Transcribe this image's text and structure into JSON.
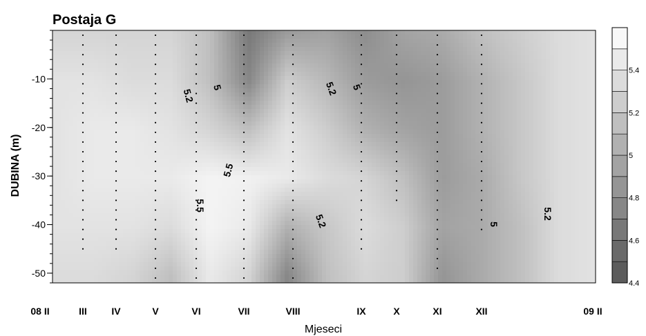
{
  "chart_data": {
    "type": "heatmap",
    "title": "Postaja G",
    "xlabel": "Mjeseci",
    "ylabel": "DUBINA (m)",
    "x_ticks": [
      "08 II",
      "III",
      "IV",
      "V",
      "VI",
      "VII",
      "VIII",
      "IX",
      "X",
      "XI",
      "XII",
      "09 II"
    ],
    "y_ticks": [
      -10,
      -20,
      -30,
      -40,
      -50
    ],
    "ylim": [
      -52,
      0
    ],
    "colorbar": {
      "ticks": [
        5.4,
        5.2,
        5,
        4.8,
        4.6,
        4.4
      ],
      "range": [
        4.4,
        5.6
      ],
      "low_color": "#555555",
      "high_color": "#ffffff"
    },
    "contour_labels": [
      "5.2",
      "5",
      "5.5",
      "5.5",
      "5.2",
      "5",
      "5.2",
      "5",
      "5.2"
    ],
    "depths": [
      0,
      -10,
      -20,
      -30,
      -40,
      -50
    ],
    "grid": [
      [
        5.3,
        5.3,
        5.3,
        5.3,
        5.15,
        4.65,
        4.9,
        4.95,
        4.8,
        4.95,
        5.0,
        5.15,
        5.25,
        5.35,
        5.4
      ],
      [
        5.4,
        5.4,
        5.35,
        5.35,
        5.15,
        4.75,
        5.25,
        5.1,
        4.9,
        4.85,
        4.9,
        5.05,
        5.2,
        5.35,
        5.4
      ],
      [
        5.4,
        5.45,
        5.45,
        5.4,
        5.3,
        5.15,
        5.4,
        5.25,
        5.05,
        4.95,
        4.9,
        5.05,
        5.2,
        5.35,
        5.4
      ],
      [
        5.4,
        5.45,
        5.45,
        5.45,
        5.52,
        5.5,
        5.45,
        5.35,
        5.3,
        5.15,
        4.9,
        5.0,
        5.2,
        5.35,
        5.4
      ],
      [
        5.4,
        5.4,
        5.4,
        5.35,
        5.52,
        5.45,
        5.05,
        5.2,
        5.35,
        5.25,
        4.95,
        5.0,
        5.15,
        5.35,
        5.4
      ],
      [
        5.35,
        5.35,
        5.3,
        5.15,
        5.45,
        5.3,
        4.75,
        5.15,
        5.3,
        5.25,
        4.85,
        5.0,
        5.15,
        5.35,
        5.4
      ]
    ],
    "sampling_profiles": [
      {
        "month": "III",
        "bottom": -46
      },
      {
        "month": "IV",
        "bottom": -45
      },
      {
        "month": "V",
        "bottom": -52
      },
      {
        "month": "VI",
        "bottom": -52
      },
      {
        "month": "VII",
        "bottom": -52
      },
      {
        "month": "VIII",
        "bottom": -52
      },
      {
        "month": "IX",
        "bottom": -46
      },
      {
        "month": "X",
        "bottom": -36
      },
      {
        "month": "XI",
        "bottom": -50
      },
      {
        "month": "XII",
        "bottom": -41
      }
    ]
  }
}
